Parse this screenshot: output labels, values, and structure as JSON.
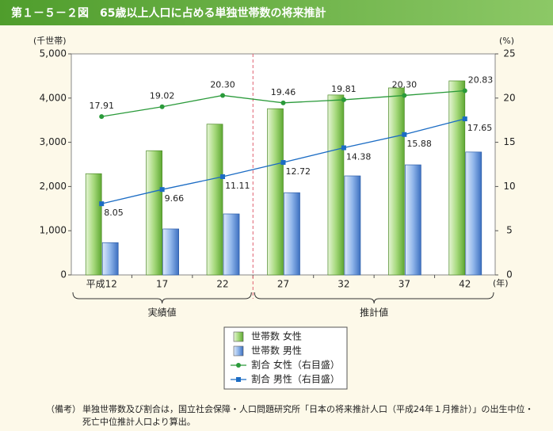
{
  "chart_data": {
    "type": "bar",
    "title": "第１－５－２図　65歳以上人口に占める単独世帯数の将来推計",
    "y_unit": "(千世帯)",
    "y2_unit": "(%)",
    "x_unit": "(年)",
    "categories": [
      "平成12",
      "17",
      "22",
      "27",
      "32",
      "37",
      "42"
    ],
    "annotations": [
      "実績値",
      "推計値"
    ],
    "series": [
      {
        "name": "世帯数 女性",
        "type": "bar",
        "color": "#7cc24a",
        "values": [
          2290,
          2810,
          3410,
          3760,
          4070,
          4230,
          4390
        ]
      },
      {
        "name": "世帯数 男性",
        "type": "bar",
        "color": "#5a8fd8",
        "values": [
          730,
          1040,
          1380,
          1860,
          2240,
          2490,
          2780
        ]
      },
      {
        "name": "割合 女性（右目盛）",
        "type": "line",
        "axis": "y2",
        "color": "#2a9a3a",
        "values": [
          17.91,
          19.02,
          20.3,
          19.46,
          19.81,
          20.3,
          20.83
        ],
        "value_labels": [
          "17.91",
          "19.02",
          "20.30",
          "19.46",
          "19.81",
          "20.30",
          "20.83"
        ]
      },
      {
        "name": "割合 男性（右目盛）",
        "type": "line",
        "axis": "y2",
        "color": "#1b6cc4",
        "values": [
          8.05,
          9.66,
          11.11,
          12.72,
          14.38,
          15.88,
          17.65
        ],
        "value_labels": [
          "8.05",
          "9.66",
          "11.11",
          "12.72",
          "14.38",
          "15.88",
          "17.65"
        ]
      }
    ],
    "ylim": [
      0,
      5000
    ],
    "yticks": [
      0,
      {
        "value": 1000,
        "label": "1,000"
      },
      {
        "value": 2000,
        "label": "2,000"
      },
      {
        "value": 3000,
        "label": "3,000"
      },
      {
        "value": 4000,
        "label": "4,000"
      },
      {
        "value": 5000,
        "label": "5,000"
      }
    ],
    "y2lim": [
      0,
      25
    ],
    "y2ticks": [
      0,
      5,
      10,
      15,
      20,
      25
    ],
    "note_label": "（備考）",
    "note_lines": [
      "単独世帯数及び割合は，国立社会保障・人口問題研究所「日本の将来推計人口（平成24年１月推計）」の出生中位・",
      "死亡中位推計人口より算出。"
    ]
  }
}
